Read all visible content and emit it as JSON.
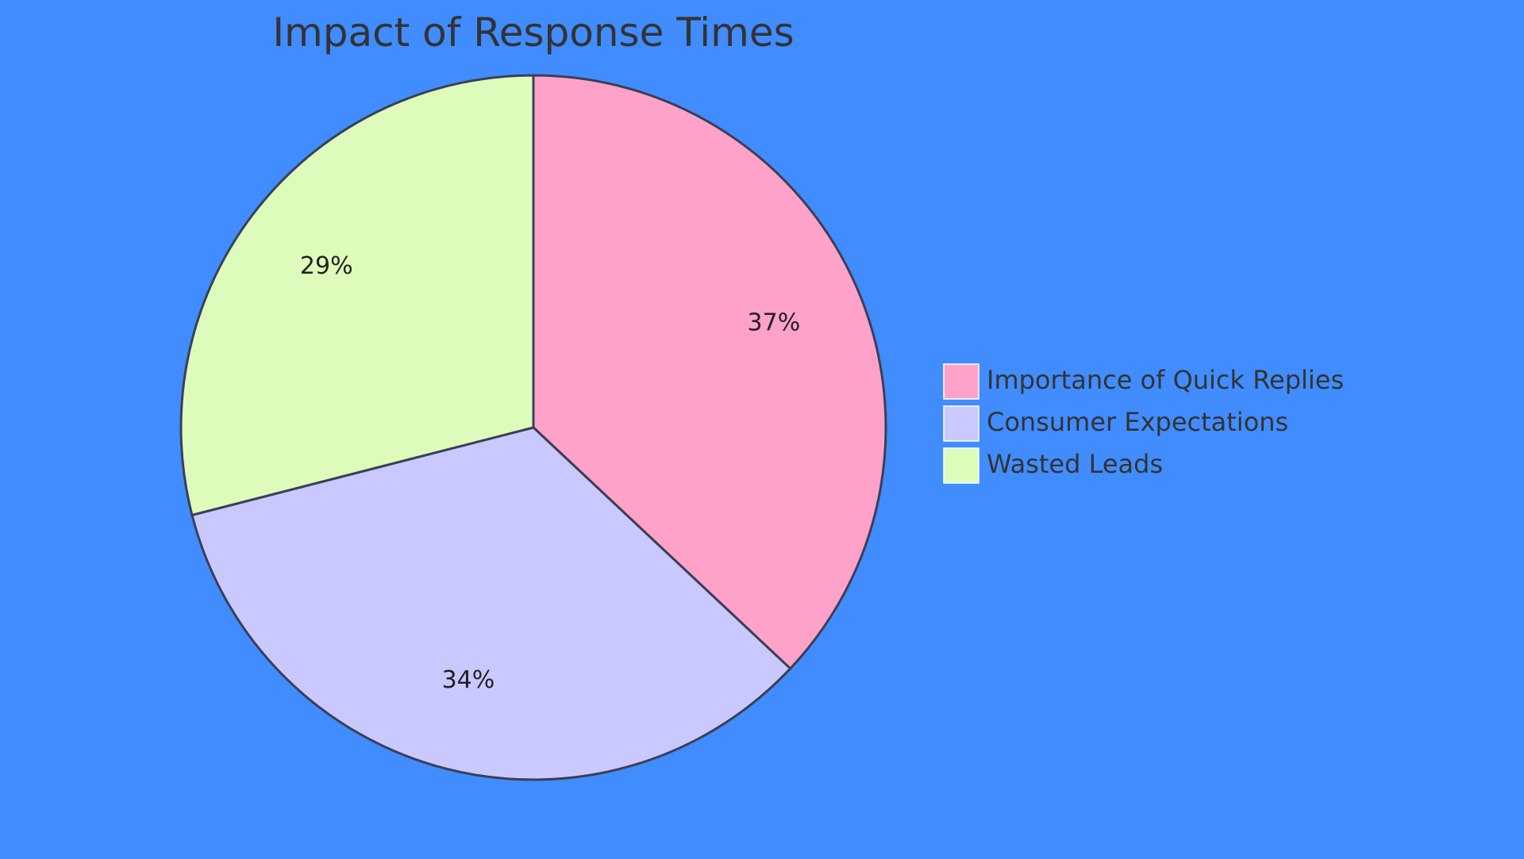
{
  "chart_data": {
    "type": "pie",
    "title": "Impact of Response Times",
    "slices": [
      {
        "label": "Importance of Quick Replies",
        "value": 37,
        "display": "37%",
        "color": "#ffa2c9"
      },
      {
        "label": "Consumer Expectations",
        "value": 34,
        "display": "34%",
        "color": "#c9c9ff"
      },
      {
        "label": "Wasted Leads",
        "value": 29,
        "display": "29%",
        "color": "#ddfcbb"
      }
    ],
    "legend_position": "right",
    "start_angle_deg": 0,
    "direction": "clockwise"
  },
  "colors": {
    "background": "#418cff",
    "outline": "#3b3f57",
    "text": "#333333"
  }
}
